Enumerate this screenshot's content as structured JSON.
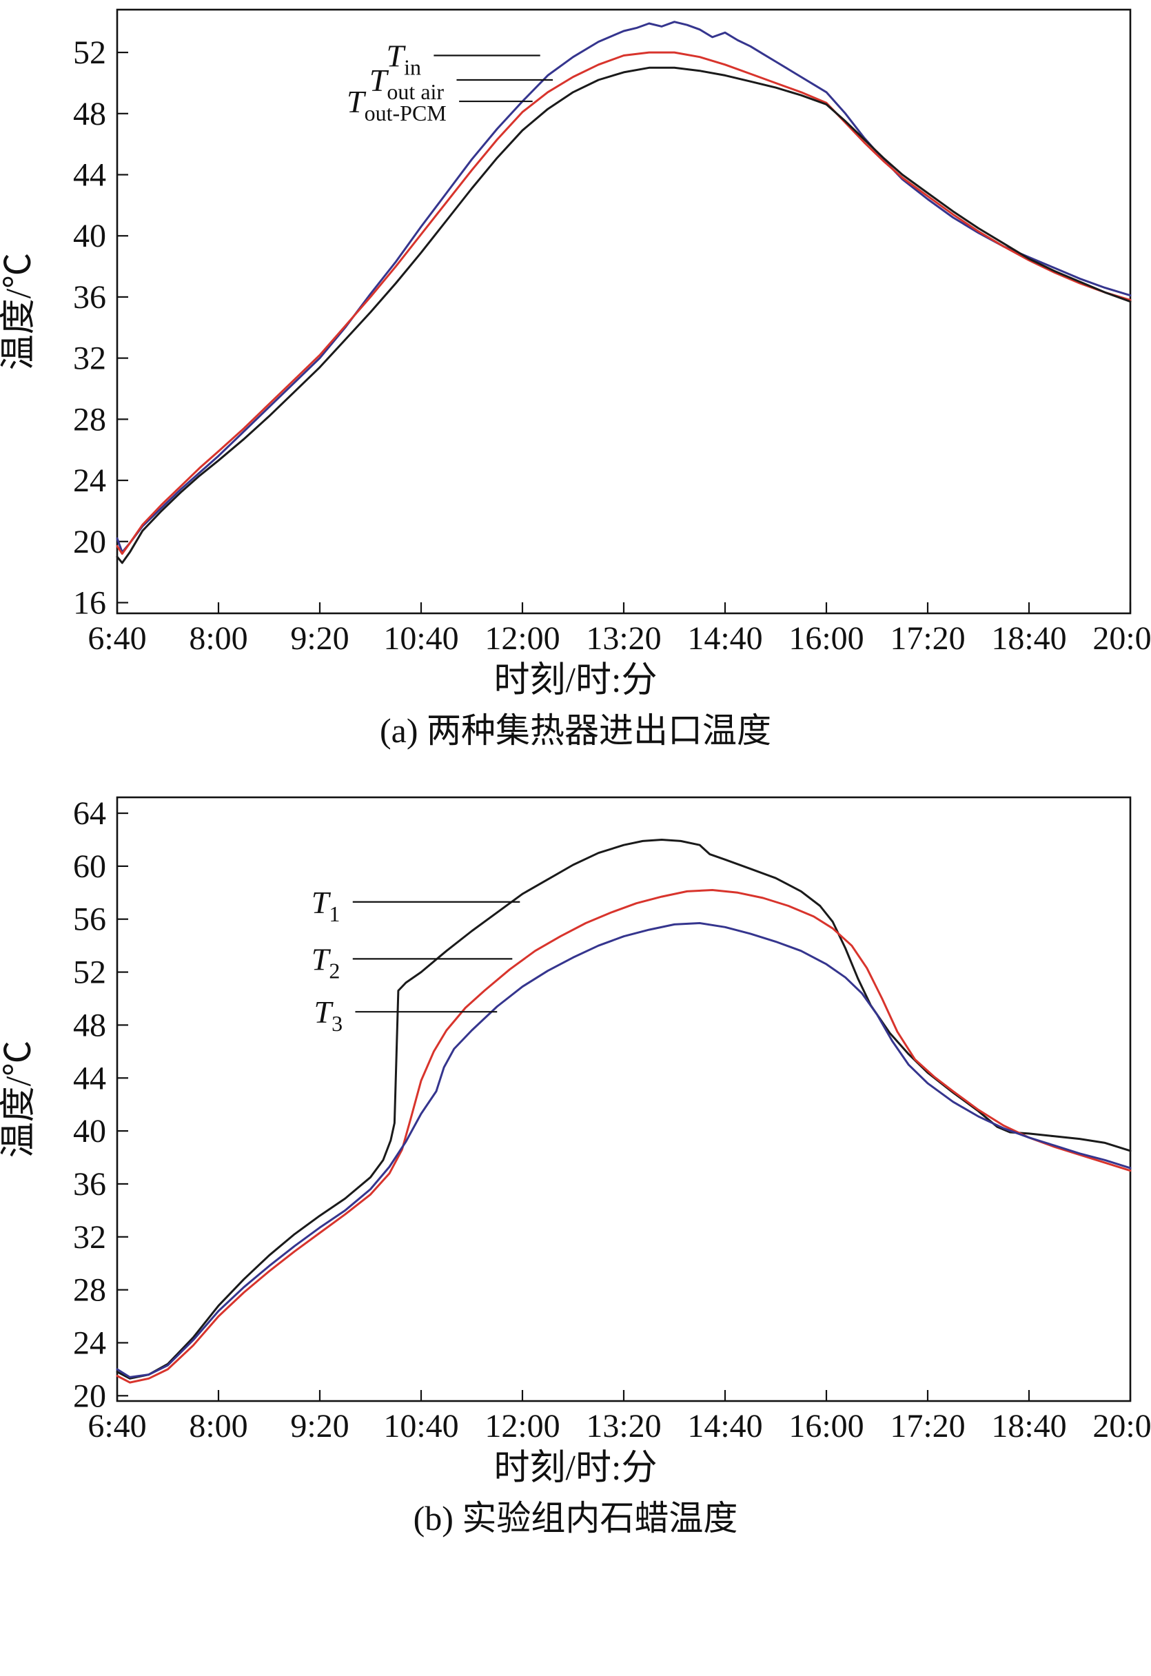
{
  "chart_data": [
    {
      "type": "line",
      "title": "(a) 两种集热器进出口温度",
      "xlabel": "时刻/时:分",
      "ylabel": "温度/℃",
      "xlim": [
        400,
        1200
      ],
      "ylim": [
        15.3,
        54.8
      ],
      "grid": false,
      "legend_position": "inline-annotations",
      "axis_color": "#111111",
      "yticks": [
        16,
        20,
        24,
        28,
        32,
        36,
        40,
        44,
        48,
        52
      ],
      "xticks": [
        {
          "v": 400,
          "label": "6:40"
        },
        {
          "v": 480,
          "label": "8:00"
        },
        {
          "v": 560,
          "label": "9:20"
        },
        {
          "v": 640,
          "label": "10:40"
        },
        {
          "v": 720,
          "label": "12:00"
        },
        {
          "v": 800,
          "label": "13:20"
        },
        {
          "v": 880,
          "label": "14:40"
        },
        {
          "v": 960,
          "label": "16:00"
        },
        {
          "v": 1040,
          "label": "17:20"
        },
        {
          "v": 1120,
          "label": "18:40"
        },
        {
          "v": 1200,
          "label": "20:00"
        }
      ],
      "series": [
        {
          "name": "T_in",
          "color": "#35358e",
          "x": [
            400,
            404,
            410,
            420,
            435,
            450,
            465,
            480,
            500,
            520,
            540,
            560,
            580,
            600,
            620,
            640,
            660,
            680,
            700,
            720,
            740,
            760,
            780,
            800,
            810,
            820,
            830,
            840,
            850,
            860,
            870,
            880,
            890,
            900,
            910,
            920,
            930,
            940,
            950,
            960,
            975,
            990,
            1005,
            1020,
            1040,
            1060,
            1080,
            1100,
            1120,
            1140,
            1160,
            1180,
            1200
          ],
          "y": [
            20.2,
            19.3,
            19.9,
            21.0,
            22.2,
            23.4,
            24.5,
            25.6,
            27.2,
            28.8,
            30.4,
            32.0,
            34.0,
            36.2,
            38.3,
            40.6,
            42.8,
            45.0,
            47.0,
            48.8,
            50.5,
            51.7,
            52.7,
            53.4,
            53.6,
            53.9,
            53.7,
            54.0,
            53.8,
            53.5,
            53.0,
            53.3,
            52.8,
            52.4,
            51.9,
            51.4,
            50.9,
            50.4,
            49.9,
            49.4,
            48.0,
            46.4,
            45.0,
            43.7,
            42.4,
            41.2,
            40.2,
            39.3,
            38.6,
            37.9,
            37.2,
            36.6,
            36.1
          ]
        },
        {
          "name": "T_out air",
          "color": "#d8342c",
          "x": [
            400,
            404,
            410,
            420,
            435,
            450,
            465,
            480,
            500,
            520,
            540,
            560,
            580,
            600,
            620,
            640,
            660,
            680,
            700,
            720,
            740,
            760,
            780,
            800,
            820,
            840,
            860,
            880,
            900,
            920,
            940,
            960,
            975,
            990,
            1005,
            1020,
            1040,
            1060,
            1080,
            1100,
            1120,
            1140,
            1160,
            1180,
            1200
          ],
          "y": [
            19.7,
            19.2,
            19.9,
            21.1,
            22.4,
            23.6,
            24.8,
            25.9,
            27.4,
            29.0,
            30.6,
            32.2,
            34.1,
            36.0,
            38.0,
            40.1,
            42.2,
            44.3,
            46.3,
            48.1,
            49.4,
            50.4,
            51.2,
            51.8,
            52.0,
            52.0,
            51.7,
            51.2,
            50.6,
            50.0,
            49.4,
            48.7,
            47.4,
            46.1,
            44.9,
            43.8,
            42.6,
            41.4,
            40.3,
            39.3,
            38.4,
            37.6,
            36.9,
            36.3,
            35.8
          ]
        },
        {
          "name": "T_out-PCM",
          "color": "#1a1a1a",
          "x": [
            400,
            404,
            410,
            420,
            435,
            450,
            465,
            480,
            500,
            520,
            540,
            560,
            580,
            600,
            620,
            640,
            660,
            680,
            700,
            720,
            740,
            760,
            780,
            800,
            820,
            840,
            860,
            880,
            900,
            920,
            940,
            960,
            975,
            990,
            1005,
            1020,
            1040,
            1060,
            1080,
            1100,
            1120,
            1140,
            1160,
            1180,
            1200
          ],
          "y": [
            19.0,
            18.6,
            19.3,
            20.7,
            22.0,
            23.2,
            24.3,
            25.3,
            26.7,
            28.2,
            29.8,
            31.4,
            33.2,
            35.0,
            36.9,
            38.9,
            41.0,
            43.1,
            45.1,
            46.9,
            48.3,
            49.4,
            50.2,
            50.7,
            51.0,
            51.0,
            50.8,
            50.5,
            50.1,
            49.7,
            49.2,
            48.6,
            47.5,
            46.3,
            45.1,
            44.0,
            42.8,
            41.6,
            40.5,
            39.5,
            38.5,
            37.7,
            37.0,
            36.3,
            35.7
          ]
        }
      ],
      "annotations": [
        {
          "main": "T",
          "sub": "in",
          "tx": 640,
          "x1": 650,
          "x2": 734,
          "y": 51.8
        },
        {
          "main": "T",
          "sub": "out air",
          "tx": 658,
          "x1": 668,
          "x2": 744,
          "y": 50.2
        },
        {
          "main": "T",
          "sub": "out-PCM",
          "tx": 660,
          "x1": 670,
          "x2": 728,
          "y": 48.8
        }
      ]
    },
    {
      "type": "line",
      "title": "(b) 实验组内石蜡温度",
      "xlabel": "时刻/时:分",
      "ylabel": "温度/℃",
      "xlim": [
        400,
        1200
      ],
      "ylim": [
        19.6,
        65.2
      ],
      "grid": false,
      "legend_position": "inline-annotations",
      "axis_color": "#111111",
      "yticks": [
        20,
        24,
        28,
        32,
        36,
        40,
        44,
        48,
        52,
        56,
        60,
        64
      ],
      "xticks": [
        {
          "v": 400,
          "label": "6:40"
        },
        {
          "v": 480,
          "label": "8:00"
        },
        {
          "v": 560,
          "label": "9:20"
        },
        {
          "v": 640,
          "label": "10:40"
        },
        {
          "v": 720,
          "label": "12:00"
        },
        {
          "v": 800,
          "label": "13:20"
        },
        {
          "v": 880,
          "label": "14:40"
        },
        {
          "v": 960,
          "label": "16:00"
        },
        {
          "v": 1040,
          "label": "17:20"
        },
        {
          "v": 1120,
          "label": "18:40"
        },
        {
          "v": 1200,
          "label": "20:00"
        }
      ],
      "series": [
        {
          "name": "T_1",
          "color": "#1a1a1a",
          "x": [
            400,
            410,
            425,
            440,
            460,
            480,
            500,
            520,
            540,
            560,
            580,
            600,
            610,
            616,
            619,
            622,
            628,
            640,
            660,
            680,
            700,
            720,
            740,
            760,
            780,
            800,
            815,
            830,
            845,
            860,
            868,
            880,
            900,
            920,
            940,
            955,
            965,
            975,
            985,
            995,
            1010,
            1025,
            1040,
            1060,
            1080,
            1095,
            1105,
            1120,
            1140,
            1160,
            1180,
            1200
          ],
          "y": [
            21.8,
            21.3,
            21.6,
            22.4,
            24.4,
            26.8,
            28.8,
            30.6,
            32.2,
            33.6,
            34.9,
            36.5,
            37.8,
            39.3,
            40.6,
            50.6,
            51.2,
            52.0,
            53.6,
            55.1,
            56.5,
            57.9,
            59.0,
            60.1,
            61.0,
            61.6,
            61.9,
            62.0,
            61.9,
            61.6,
            60.9,
            60.5,
            59.8,
            59.1,
            58.1,
            57.0,
            55.8,
            53.8,
            51.5,
            49.5,
            47.4,
            45.8,
            44.4,
            42.9,
            41.5,
            40.3,
            39.9,
            39.8,
            39.6,
            39.4,
            39.1,
            38.5
          ]
        },
        {
          "name": "T_2",
          "color": "#d8342c",
          "x": [
            400,
            410,
            425,
            440,
            460,
            480,
            500,
            520,
            540,
            560,
            580,
            600,
            615,
            625,
            632,
            640,
            650,
            660,
            675,
            690,
            710,
            730,
            750,
            770,
            790,
            810,
            830,
            850,
            870,
            890,
            910,
            930,
            950,
            965,
            980,
            992,
            1004,
            1016,
            1030,
            1045,
            1060,
            1080,
            1100,
            1120,
            1140,
            1160,
            1180,
            1200
          ],
          "y": [
            21.5,
            21.0,
            21.3,
            22.0,
            23.8,
            26.0,
            27.8,
            29.4,
            30.9,
            32.3,
            33.7,
            35.2,
            36.8,
            38.6,
            41.0,
            43.8,
            46.0,
            47.6,
            49.3,
            50.6,
            52.2,
            53.6,
            54.7,
            55.7,
            56.5,
            57.2,
            57.7,
            58.1,
            58.2,
            58.0,
            57.6,
            57.0,
            56.2,
            55.3,
            54.0,
            52.3,
            50.0,
            47.5,
            45.4,
            44.1,
            43.0,
            41.6,
            40.4,
            39.5,
            38.8,
            38.2,
            37.6,
            37.0
          ]
        },
        {
          "name": "T_3",
          "color": "#35358e",
          "x": [
            400,
            410,
            425,
            440,
            460,
            480,
            500,
            520,
            540,
            560,
            580,
            600,
            615,
            628,
            640,
            652,
            658,
            666,
            680,
            700,
            720,
            740,
            760,
            780,
            800,
            820,
            840,
            860,
            880,
            900,
            920,
            940,
            960,
            975,
            988,
            1000,
            1012,
            1025,
            1040,
            1060,
            1080,
            1100,
            1120,
            1140,
            1160,
            1180,
            1200
          ],
          "y": [
            22.0,
            21.4,
            21.6,
            22.3,
            24.2,
            26.4,
            28.2,
            29.8,
            31.3,
            32.7,
            34.0,
            35.6,
            37.3,
            39.2,
            41.3,
            43.0,
            44.8,
            46.2,
            47.6,
            49.4,
            50.9,
            52.1,
            53.1,
            54.0,
            54.7,
            55.2,
            55.6,
            55.7,
            55.4,
            54.9,
            54.3,
            53.6,
            52.6,
            51.6,
            50.4,
            48.8,
            46.8,
            45.0,
            43.6,
            42.2,
            41.1,
            40.2,
            39.5,
            38.9,
            38.3,
            37.8,
            37.2
          ]
        }
      ],
      "annotations": [
        {
          "main": "T",
          "sub": "1",
          "tx": 576,
          "x1": 586,
          "x2": 718,
          "y": 57.3
        },
        {
          "main": "T",
          "sub": "2",
          "tx": 576,
          "x1": 586,
          "x2": 712,
          "y": 53.0
        },
        {
          "main": "T",
          "sub": "3",
          "tx": 578,
          "x1": 588,
          "x2": 700,
          "y": 49.0
        }
      ]
    }
  ]
}
